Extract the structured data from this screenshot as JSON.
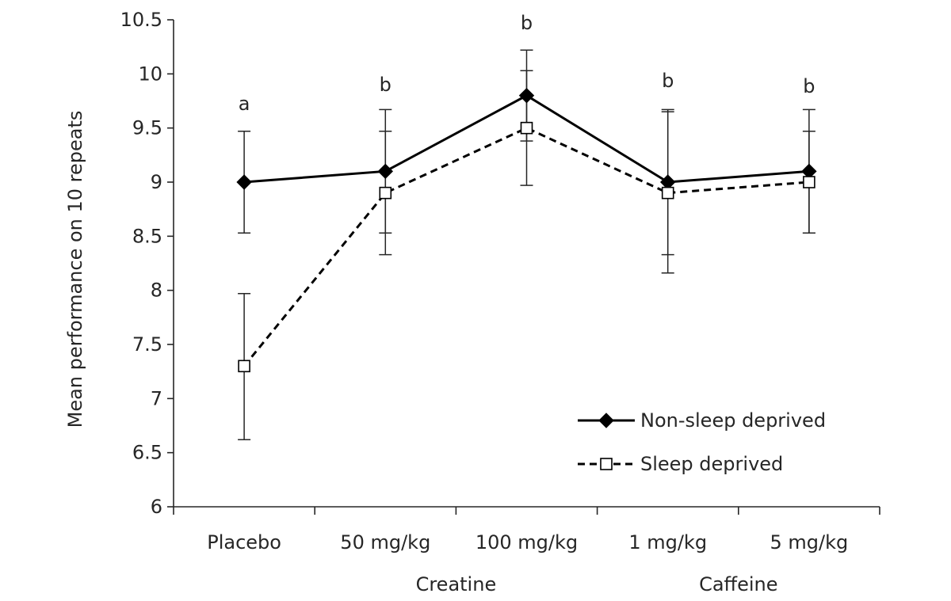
{
  "chart_data": {
    "type": "line",
    "ylabel": "Mean performance on 10 repeats",
    "xlabel": "",
    "ylim": [
      6,
      10.5
    ],
    "yticks": [
      "6",
      "6.5",
      "7",
      "7.5",
      "8",
      "8.5",
      "9",
      "9.5",
      "10",
      "10.5"
    ],
    "ytick_values": [
      6,
      6.5,
      7,
      7.5,
      8,
      8.5,
      9,
      9.5,
      10,
      10.5
    ],
    "categories": [
      "Placebo",
      "50 mg/kg",
      "100 mg/kg",
      "1 mg/kg",
      "5 mg/kg"
    ],
    "groups": [
      {
        "label": "Creatine",
        "categories": [
          "50 mg/kg",
          "100 mg/kg"
        ]
      },
      {
        "label": "Caffeine",
        "categories": [
          "1 mg/kg",
          "5 mg/kg"
        ]
      }
    ],
    "significance_labels": [
      "a",
      "b",
      "b",
      "b",
      "b"
    ],
    "series": [
      {
        "name": "Non-sleep deprived",
        "values": [
          9.0,
          9.1,
          9.8,
          9.0,
          9.1
        ],
        "error_low": [
          8.53,
          8.53,
          9.38,
          8.33,
          8.53
        ],
        "error_high": [
          9.47,
          9.67,
          10.22,
          9.67,
          9.67
        ],
        "marker": "filled-diamond",
        "line_style": "solid",
        "color": "#000000"
      },
      {
        "name": "Sleep deprived",
        "values": [
          7.3,
          8.9,
          9.5,
          8.9,
          9.0
        ],
        "error_low": [
          6.62,
          8.33,
          8.97,
          8.16,
          8.53
        ],
        "error_high": [
          7.97,
          9.47,
          10.03,
          9.65,
          9.47
        ],
        "marker": "open-square",
        "line_style": "dashed",
        "color": "#000000"
      }
    ],
    "legend_position": "bottom-right",
    "grid": false
  }
}
